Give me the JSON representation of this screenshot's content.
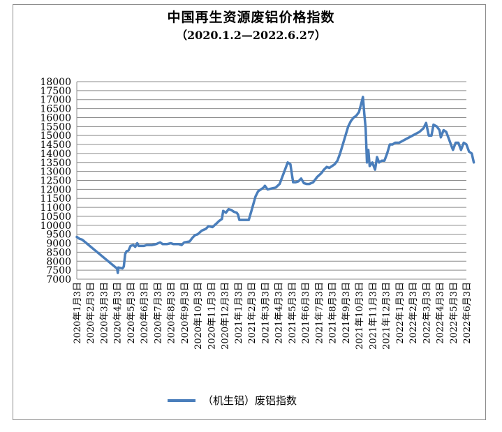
{
  "chart_data": {
    "type": "line",
    "title": "中国再生资源废铝价格指数",
    "subtitle": "（2020.1.2—2022.6.27）",
    "ylim": [
      7000,
      18000
    ],
    "y_ticks": [
      7000,
      7500,
      8000,
      8500,
      9000,
      9500,
      10000,
      10500,
      11000,
      11500,
      12000,
      12500,
      13000,
      13500,
      14000,
      14500,
      15000,
      15500,
      16000,
      16500,
      17000,
      17500,
      18000
    ],
    "grid": true,
    "legend_position": "bottom",
    "categories": [
      "2020年1月3日",
      "2020年2月3日",
      "2020年3月3日",
      "2020年4月3日",
      "2020年5月3日",
      "2020年6月3日",
      "2020年7月3日",
      "2020年8月3日",
      "2020年9月3日",
      "2020年10月3日",
      "2020年11月3日",
      "2020年12月3日",
      "2021年1月3日",
      "2021年2月3日",
      "2021年3月3日",
      "2021年4月3日",
      "2021年5月3日",
      "2021年6月3日",
      "2021年7月3日",
      "2021年8月3日",
      "2021年9月3日",
      "2021年10月3日",
      "2021年11月3日",
      "2021年12月3日",
      "2022年1月3日",
      "2022年2月3日",
      "2022年3月3日",
      "2022年4月3日",
      "2022年5月3日",
      "2022年6月3日"
    ],
    "series": [
      {
        "name": "（机生铝）废铝指数",
        "color": "#4a7ebb",
        "x_unit": "months since 2020年1月3日",
        "points": [
          [
            0.0,
            9350
          ],
          [
            0.2,
            9250
          ],
          [
            0.4,
            9200
          ],
          [
            2.9,
            7650
          ],
          [
            3.0,
            7600
          ],
          [
            3.05,
            7350
          ],
          [
            3.1,
            7650
          ],
          [
            3.4,
            7600
          ],
          [
            3.5,
            7700
          ],
          [
            3.6,
            8400
          ],
          [
            3.7,
            8550
          ],
          [
            3.85,
            8600
          ],
          [
            4.0,
            8850
          ],
          [
            4.2,
            8900
          ],
          [
            4.35,
            8800
          ],
          [
            4.5,
            9000
          ],
          [
            4.6,
            8850
          ],
          [
            5.0,
            8850
          ],
          [
            5.2,
            8900
          ],
          [
            5.6,
            8900
          ],
          [
            5.9,
            8950
          ],
          [
            6.2,
            9050
          ],
          [
            6.4,
            8950
          ],
          [
            6.7,
            8950
          ],
          [
            7.0,
            9000
          ],
          [
            7.2,
            8950
          ],
          [
            7.6,
            8950
          ],
          [
            7.8,
            8900
          ],
          [
            8.0,
            9050
          ],
          [
            8.4,
            9100
          ],
          [
            8.6,
            9300
          ],
          [
            8.8,
            9450
          ],
          [
            9.0,
            9500
          ],
          [
            9.3,
            9700
          ],
          [
            9.6,
            9800
          ],
          [
            9.8,
            9950
          ],
          [
            10.1,
            9900
          ],
          [
            10.4,
            10100
          ],
          [
            10.6,
            10250
          ],
          [
            10.8,
            10350
          ],
          [
            10.9,
            10800
          ],
          [
            11.1,
            10700
          ],
          [
            11.3,
            10900
          ],
          [
            11.5,
            10850
          ],
          [
            11.7,
            10750
          ],
          [
            11.9,
            10700
          ],
          [
            12.0,
            10600
          ],
          [
            12.1,
            10300
          ],
          [
            12.8,
            10300
          ],
          [
            13.0,
            10800
          ],
          [
            13.3,
            11600
          ],
          [
            13.5,
            11900
          ],
          [
            13.7,
            12000
          ],
          [
            13.9,
            12100
          ],
          [
            14.0,
            12200
          ],
          [
            14.2,
            12000
          ],
          [
            14.5,
            12050
          ],
          [
            14.8,
            12100
          ],
          [
            15.1,
            12300
          ],
          [
            15.4,
            12900
          ],
          [
            15.7,
            13500
          ],
          [
            15.9,
            13400
          ],
          [
            16.1,
            12400
          ],
          [
            16.3,
            12400
          ],
          [
            16.5,
            12450
          ],
          [
            16.7,
            12600
          ],
          [
            16.9,
            12350
          ],
          [
            17.1,
            12300
          ],
          [
            17.3,
            12300
          ],
          [
            17.6,
            12400
          ],
          [
            17.9,
            12700
          ],
          [
            18.2,
            12900
          ],
          [
            18.4,
            13100
          ],
          [
            18.6,
            13250
          ],
          [
            18.8,
            13200
          ],
          [
            19.0,
            13300
          ],
          [
            19.2,
            13400
          ],
          [
            19.4,
            13600
          ],
          [
            19.6,
            14000
          ],
          [
            19.8,
            14500
          ],
          [
            20.0,
            15000
          ],
          [
            20.2,
            15500
          ],
          [
            20.4,
            15800
          ],
          [
            20.6,
            16000
          ],
          [
            20.8,
            16100
          ],
          [
            21.0,
            16300
          ],
          [
            21.2,
            16850
          ],
          [
            21.3,
            17150
          ],
          [
            21.4,
            16200
          ],
          [
            21.5,
            15400
          ],
          [
            21.6,
            13500
          ],
          [
            21.7,
            14200
          ],
          [
            21.8,
            13300
          ],
          [
            22.0,
            13500
          ],
          [
            22.2,
            13100
          ],
          [
            22.35,
            13800
          ],
          [
            22.5,
            13500
          ],
          [
            22.7,
            13600
          ],
          [
            22.9,
            13600
          ],
          [
            23.1,
            14000
          ],
          [
            23.3,
            14500
          ],
          [
            23.5,
            14500
          ],
          [
            23.7,
            14600
          ],
          [
            24.0,
            14600
          ],
          [
            24.5,
            14800
          ],
          [
            25.0,
            15000
          ],
          [
            25.5,
            15200
          ],
          [
            25.8,
            15400
          ],
          [
            26.0,
            15700
          ],
          [
            26.2,
            15000
          ],
          [
            26.4,
            15000
          ],
          [
            26.55,
            15600
          ],
          [
            26.8,
            15500
          ],
          [
            27.0,
            15300
          ],
          [
            27.1,
            14900
          ],
          [
            27.3,
            15300
          ],
          [
            27.5,
            15200
          ],
          [
            27.7,
            14800
          ],
          [
            27.9,
            14400
          ],
          [
            28.0,
            14200
          ],
          [
            28.2,
            14600
          ],
          [
            28.4,
            14600
          ],
          [
            28.6,
            14200
          ],
          [
            28.8,
            14600
          ],
          [
            29.0,
            14500
          ],
          [
            29.2,
            14100
          ],
          [
            29.4,
            14000
          ],
          [
            29.55,
            13500
          ]
        ]
      }
    ]
  }
}
